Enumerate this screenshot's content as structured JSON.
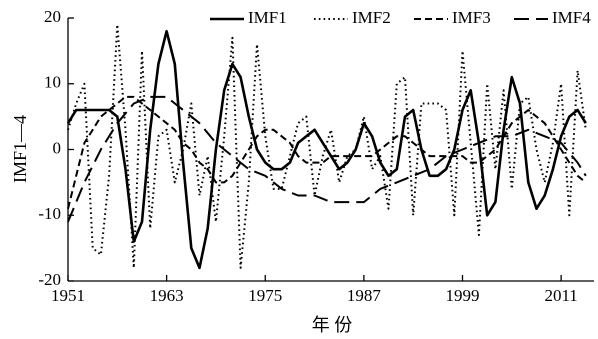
{
  "chart_data": {
    "type": "line",
    "xlabel": "年 份",
    "ylabel": "IMF1—4",
    "xlim": [
      1951,
      2015
    ],
    "ylim": [
      -20,
      20
    ],
    "x_ticks": [
      1951,
      1963,
      1975,
      1987,
      1999,
      2011
    ],
    "y_ticks": [
      -20,
      -10,
      0,
      10,
      20
    ],
    "grid": false,
    "legend": "top",
    "series": [
      {
        "name": "IMF1",
        "style": "solid",
        "points": [
          [
            1951,
            4
          ],
          [
            1952,
            6
          ],
          [
            1953,
            6
          ],
          [
            1954,
            6
          ],
          [
            1955,
            6
          ],
          [
            1956,
            6
          ],
          [
            1957,
            5
          ],
          [
            1958,
            -3
          ],
          [
            1959,
            -14
          ],
          [
            1960,
            -11
          ],
          [
            1961,
            3
          ],
          [
            1962,
            13
          ],
          [
            1963,
            18
          ],
          [
            1964,
            13
          ],
          [
            1965,
            -2
          ],
          [
            1966,
            -15
          ],
          [
            1967,
            -18
          ],
          [
            1968,
            -12
          ],
          [
            1969,
            0
          ],
          [
            1970,
            9
          ],
          [
            1971,
            13
          ],
          [
            1972,
            11
          ],
          [
            1973,
            5
          ],
          [
            1974,
            0
          ],
          [
            1975,
            -2
          ],
          [
            1976,
            -3
          ],
          [
            1977,
            -3
          ],
          [
            1978,
            -2
          ],
          [
            1979,
            1
          ],
          [
            1980,
            2
          ],
          [
            1981,
            3
          ],
          [
            1982,
            1
          ],
          [
            1983,
            -1
          ],
          [
            1984,
            -3
          ],
          [
            1985,
            -2
          ],
          [
            1986,
            0
          ],
          [
            1987,
            4
          ],
          [
            1988,
            2
          ],
          [
            1989,
            -2
          ],
          [
            1990,
            -4
          ],
          [
            1991,
            -3
          ],
          [
            1992,
            5
          ],
          [
            1993,
            6
          ],
          [
            1994,
            0
          ],
          [
            1995,
            -4
          ],
          [
            1996,
            -4
          ],
          [
            1997,
            -3
          ],
          [
            1998,
            0
          ],
          [
            1999,
            6
          ],
          [
            2000,
            9
          ],
          [
            2001,
            1
          ],
          [
            2002,
            -10
          ],
          [
            2003,
            -8
          ],
          [
            2004,
            3
          ],
          [
            2005,
            11
          ],
          [
            2006,
            7
          ],
          [
            2007,
            -5
          ],
          [
            2008,
            -9
          ],
          [
            2009,
            -7
          ],
          [
            2010,
            -3
          ],
          [
            2011,
            2
          ],
          [
            2012,
            5
          ],
          [
            2013,
            6
          ],
          [
            2014,
            4
          ]
        ]
      },
      {
        "name": "IMF2",
        "style": "dotted",
        "points": [
          [
            1951,
            3
          ],
          [
            1952,
            7
          ],
          [
            1953,
            10
          ],
          [
            1954,
            -15
          ],
          [
            1955,
            -16
          ],
          [
            1956,
            -4
          ],
          [
            1957,
            19
          ],
          [
            1958,
            3
          ],
          [
            1959,
            -18
          ],
          [
            1960,
            15
          ],
          [
            1961,
            -12
          ],
          [
            1962,
            2
          ],
          [
            1963,
            3
          ],
          [
            1964,
            -5
          ],
          [
            1965,
            0
          ],
          [
            1966,
            7
          ],
          [
            1967,
            -7
          ],
          [
            1968,
            -1
          ],
          [
            1969,
            -11
          ],
          [
            1970,
            2
          ],
          [
            1971,
            17
          ],
          [
            1972,
            -18
          ],
          [
            1973,
            -5
          ],
          [
            1974,
            16
          ],
          [
            1975,
            2
          ],
          [
            1976,
            -6
          ],
          [
            1977,
            -6
          ],
          [
            1978,
            -1
          ],
          [
            1979,
            4
          ],
          [
            1980,
            5
          ],
          [
            1981,
            -7
          ],
          [
            1982,
            -1
          ],
          [
            1983,
            3
          ],
          [
            1984,
            -5
          ],
          [
            1985,
            -1
          ],
          [
            1986,
            0
          ],
          [
            1987,
            5
          ],
          [
            1988,
            -3
          ],
          [
            1989,
            -1
          ],
          [
            1990,
            -9
          ],
          [
            1991,
            10
          ],
          [
            1992,
            11
          ],
          [
            1993,
            -10
          ],
          [
            1994,
            7
          ],
          [
            1995,
            7
          ],
          [
            1996,
            7
          ],
          [
            1997,
            6
          ],
          [
            1998,
            -10
          ],
          [
            1999,
            15
          ],
          [
            2000,
            1
          ],
          [
            2001,
            -13
          ],
          [
            2002,
            10
          ],
          [
            2003,
            -3
          ],
          [
            2004,
            9
          ],
          [
            2005,
            -6
          ],
          [
            2006,
            7
          ],
          [
            2007,
            8
          ],
          [
            2008,
            0
          ],
          [
            2009,
            -5
          ],
          [
            2010,
            1
          ],
          [
            2011,
            10
          ],
          [
            2012,
            -10
          ],
          [
            2013,
            12
          ],
          [
            2014,
            3
          ]
        ]
      },
      {
        "name": "IMF3",
        "style": "dashed",
        "points": [
          [
            1951,
            -9
          ],
          [
            1952,
            -4
          ],
          [
            1953,
            1
          ],
          [
            1954,
            3
          ],
          [
            1955,
            5
          ],
          [
            1956,
            6
          ],
          [
            1957,
            7
          ],
          [
            1958,
            8
          ],
          [
            1959,
            8
          ],
          [
            1960,
            7
          ],
          [
            1961,
            6
          ],
          [
            1962,
            5
          ],
          [
            1963,
            4
          ],
          [
            1964,
            3
          ],
          [
            1965,
            1
          ],
          [
            1966,
            0
          ],
          [
            1967,
            -2
          ],
          [
            1968,
            -3
          ],
          [
            1969,
            -5
          ],
          [
            1970,
            -5
          ],
          [
            1971,
            -4
          ],
          [
            1972,
            -2
          ],
          [
            1973,
            0
          ],
          [
            1974,
            2
          ],
          [
            1975,
            3
          ],
          [
            1976,
            3
          ],
          [
            1977,
            2
          ],
          [
            1978,
            1
          ],
          [
            1979,
            -1
          ],
          [
            1980,
            -2
          ],
          [
            1981,
            -2
          ],
          [
            1982,
            -2
          ],
          [
            1983,
            -1
          ],
          [
            1984,
            -1
          ],
          [
            1985,
            -1
          ],
          [
            1986,
            -1
          ],
          [
            1987,
            -1
          ],
          [
            1988,
            -1
          ],
          [
            1989,
            0
          ],
          [
            1990,
            1
          ],
          [
            1991,
            2
          ],
          [
            1992,
            2
          ],
          [
            1993,
            1
          ],
          [
            1994,
            0
          ],
          [
            1995,
            -1
          ],
          [
            1996,
            -1
          ],
          [
            1997,
            -1
          ],
          [
            1998,
            -1
          ],
          [
            1999,
            -1
          ],
          [
            2000,
            -2
          ],
          [
            2001,
            -2
          ],
          [
            2002,
            -1
          ],
          [
            2003,
            0
          ],
          [
            2004,
            2
          ],
          [
            2005,
            4
          ],
          [
            2006,
            5
          ],
          [
            2007,
            6
          ],
          [
            2008,
            5
          ],
          [
            2009,
            4
          ],
          [
            2010,
            2
          ],
          [
            2011,
            0
          ],
          [
            2012,
            -2
          ],
          [
            2013,
            -4
          ],
          [
            2014,
            -5
          ]
        ]
      },
      {
        "name": "IMF4",
        "style": "long-dash",
        "points": [
          [
            1951,
            -11
          ],
          [
            1953,
            -5
          ],
          [
            1955,
            0
          ],
          [
            1957,
            4
          ],
          [
            1959,
            7
          ],
          [
            1961,
            8
          ],
          [
            1963,
            8
          ],
          [
            1965,
            6
          ],
          [
            1967,
            4
          ],
          [
            1969,
            1
          ],
          [
            1971,
            -1
          ],
          [
            1973,
            -3
          ],
          [
            1975,
            -4
          ],
          [
            1977,
            -6
          ],
          [
            1979,
            -7
          ],
          [
            1981,
            -7
          ],
          [
            1983,
            -8
          ],
          [
            1985,
            -8
          ],
          [
            1987,
            -8
          ],
          [
            1989,
            -6
          ],
          [
            1991,
            -5
          ],
          [
            1993,
            -4
          ],
          [
            1995,
            -3
          ],
          [
            1997,
            -1
          ],
          [
            1999,
            0
          ],
          [
            2001,
            1
          ],
          [
            2003,
            2
          ],
          [
            2005,
            2
          ],
          [
            2007,
            3
          ],
          [
            2009,
            2
          ],
          [
            2011,
            1
          ],
          [
            2013,
            -2
          ],
          [
            2014,
            -4
          ]
        ]
      }
    ]
  }
}
